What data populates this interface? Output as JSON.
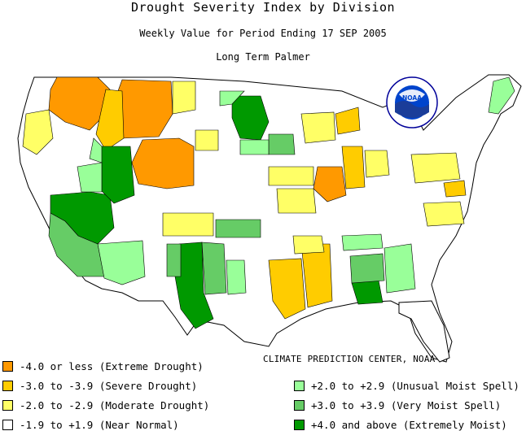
{
  "header": {
    "title": "Drought Severity Index by Division",
    "subtitle": "Weekly Value for Period Ending 17 SEP 2005",
    "index_name": "Long Term Palmer"
  },
  "logo": {
    "text": "NOAA",
    "ring_text": "NATIONAL OCEANIC AND ATMOSPHERIC ADMINISTRATION"
  },
  "credit": "CLIMATE PREDICTION CENTER, NOAA",
  "colors": {
    "extreme_drought": "#ff9900",
    "severe_drought": "#ffcc00",
    "moderate_drought": "#ffff66",
    "near_normal": "#ffffff",
    "unusual_moist": "#99ff99",
    "very_moist": "#66cc66",
    "extremely_moist": "#009900"
  },
  "legend": [
    {
      "label": "-4.0 or less (Extreme Drought)",
      "color": "#ff9900"
    },
    {
      "label": "-3.0 to -3.9 (Severe Drought)",
      "color": "#ffcc00"
    },
    {
      "label": "-2.0 to -2.9 (Moderate Drought)",
      "color": "#ffff66"
    },
    {
      "label": "-1.9 to +1.9 (Near Normal)",
      "color": "#ffffff"
    },
    {
      "label": "+2.0 to +2.9 (Unusual Moist Spell)",
      "color": "#99ff99"
    },
    {
      "label": "+3.0 to +3.9 (Very Moist Spell)",
      "color": "#66cc66"
    },
    {
      "label": "+4.0 and above (Extremely Moist)",
      "color": "#009900"
    }
  ]
}
